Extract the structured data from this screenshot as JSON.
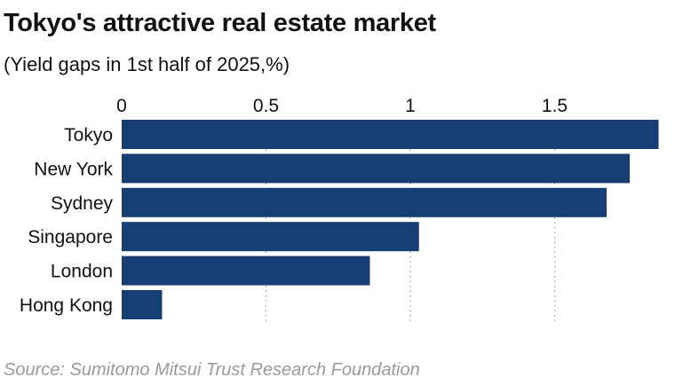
{
  "title": "Tokyo's attractive real estate market",
  "subtitle": "(Yield gaps in 1st half of 2025,%)",
  "source": "Source: Sumitomo Mitsui Trust Research Foundation",
  "colors": {
    "bar": "#173f73",
    "grid": "#9a9a9a",
    "text": "#111111",
    "source": "#9a9a9a"
  },
  "chart_data": {
    "type": "bar",
    "orientation": "horizontal",
    "categories": [
      "Tokyo",
      "New York",
      "Sydney",
      "Singapore",
      "London",
      "Hong Kong"
    ],
    "values": [
      1.86,
      1.76,
      1.68,
      1.03,
      0.86,
      0.14
    ],
    "xlim": [
      0,
      1.86
    ],
    "xticks": [
      0,
      0.5,
      1,
      1.5
    ],
    "xtick_labels": [
      "0",
      "0.5",
      "1",
      "1.5"
    ],
    "grid": "dotted vertical",
    "axis_position": "top",
    "title": "Tokyo's attractive real estate market",
    "xlabel": "",
    "ylabel": ""
  }
}
